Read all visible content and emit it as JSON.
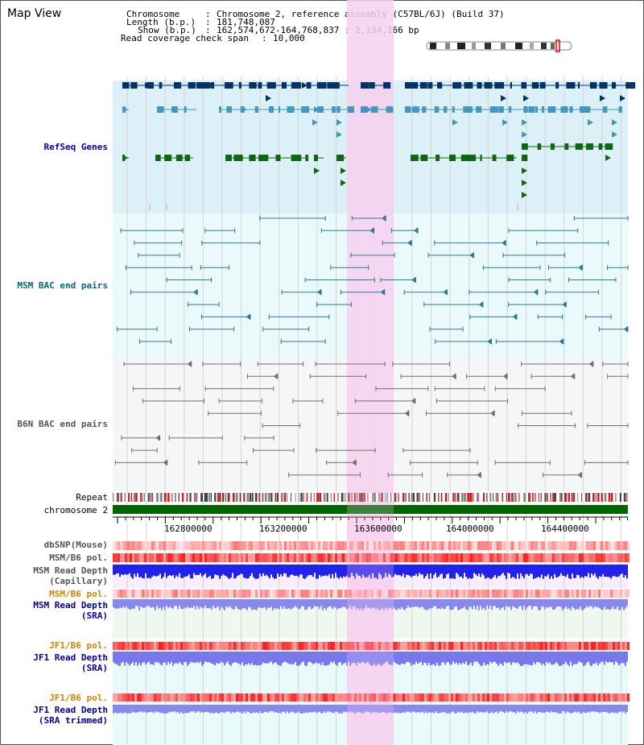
{
  "header": {
    "title": "Map View",
    "chromosome_key": "Chromosome",
    "chromosome_value": "Chromosome 2, reference assembly (C57BL/6J) (Build 37)",
    "length_key": "Length (b.p.)",
    "length_value": "181,748,087",
    "show_key": "Show (b.p.)",
    "show_value": "162,574,672-164,768,837 : 2,194,166 bp",
    "coverage_key": "Read coverage check span",
    "coverage_value": "10,000"
  },
  "tracks": {
    "refseq": "RefSeq Genes",
    "msm_bac": "MSM BAC end pairs",
    "b6n_bac": "B6N BAC end pairs",
    "repeat": "Repeat",
    "chromosome": "chromosome 2",
    "dbsnp": "dbSNP(Mouse)",
    "msm_pol1": "MSM/B6 pol.",
    "msm_depth_cap_1": "MSM Read Depth",
    "msm_depth_cap_2": "(Capillary)",
    "msm_pol2": "MSM/B6 pol.",
    "msm_depth_sra_1": "MSM Read Depth",
    "msm_depth_sra_2": "(SRA)",
    "jf1_pol1": "JF1/B6 pol.",
    "jf1_depth_sra_1": "JF1 Read Depth",
    "jf1_depth_sra_2": "(SRA)",
    "jf1_pol2": "JF1/B6 pol.",
    "jf1_depth_trim_1": "JF1 Read Depth",
    "jf1_depth_trim_2": "(SRA trimmed)"
  },
  "axis": {
    "ticks": [
      "162800000",
      "163200000",
      "163600000",
      "164000000",
      "164400000"
    ]
  },
  "colors": {
    "refseq_label": "#0000aa",
    "msm_label": "#006688",
    "b6n_label": "#555555",
    "pol_orange": "#cc8800",
    "highlight": "#f7d0ee",
    "gene_dark": "#003366",
    "gene_mid": "#4499bb",
    "gene_green": "#116611",
    "chrom_green": "#006600"
  }
}
